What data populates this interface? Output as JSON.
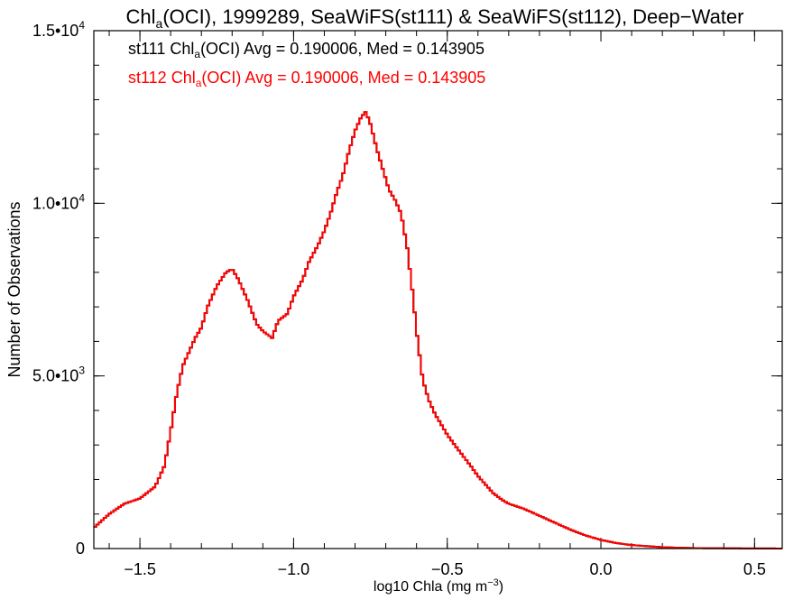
{
  "chart_data": {
    "type": "line",
    "title": {
      "base": "Chl",
      "sub": "a",
      "rest": "(OCI), 1999289, SeaWiFS(st111) & SeaWiFS(st112), Deep−Water"
    },
    "xlabel": {
      "base": "log10 Chla (mg m",
      "sup": "−3",
      "end": ")"
    },
    "ylabel": "Number of Observations",
    "xlim": [
      -1.65,
      0.59
    ],
    "ylim": [
      0,
      15000
    ],
    "x_ticks": [
      {
        "value": -1.5,
        "label": "−1.5"
      },
      {
        "value": -1.0,
        "label": "−1.0"
      },
      {
        "value": -0.5,
        "label": "−0.5"
      },
      {
        "value": 0.0,
        "label": "0.0"
      },
      {
        "value": 0.5,
        "label": "0.5"
      }
    ],
    "x_minor_step": 0.1,
    "y_ticks": [
      {
        "value": 0,
        "base": "0",
        "exp": ""
      },
      {
        "value": 5000,
        "base": "5.0•10",
        "exp": "3"
      },
      {
        "value": 10000,
        "base": "1.0•10",
        "exp": "4"
      },
      {
        "value": 15000,
        "base": "1.5•10",
        "exp": "4"
      }
    ],
    "y_minor_step": 1000,
    "annotations": [
      {
        "id": "st111",
        "color": "#000000",
        "prefix": "st111 Chl",
        "sub": "a",
        "rest": "(OCI) Avg = 0.190006, Med = 0.143905"
      },
      {
        "id": "st112",
        "color": "#ff0000",
        "prefix": "st112 Chl",
        "sub": "a",
        "rest": "(OCI) Avg = 0.190006, Med = 0.143905"
      }
    ],
    "series": [
      {
        "id": "st111",
        "color": "#000000"
      },
      {
        "id": "st112",
        "color": "#ff0000"
      }
    ],
    "x": [
      -1.65,
      -1.6,
      -1.55,
      -1.5,
      -1.45,
      -1.42,
      -1.4,
      -1.38,
      -1.36,
      -1.34,
      -1.32,
      -1.3,
      -1.28,
      -1.25,
      -1.22,
      -1.2,
      -1.18,
      -1.15,
      -1.12,
      -1.1,
      -1.07,
      -1.05,
      -1.02,
      -1.0,
      -0.97,
      -0.95,
      -0.92,
      -0.9,
      -0.88,
      -0.86,
      -0.84,
      -0.82,
      -0.8,
      -0.78,
      -0.765,
      -0.75,
      -0.73,
      -0.71,
      -0.69,
      -0.67,
      -0.65,
      -0.63,
      -0.61,
      -0.6,
      -0.59,
      -0.58,
      -0.56,
      -0.54,
      -0.52,
      -0.5,
      -0.48,
      -0.45,
      -0.42,
      -0.4,
      -0.37,
      -0.35,
      -0.32,
      -0.3,
      -0.25,
      -0.2,
      -0.15,
      -0.1,
      -0.05,
      0.0,
      0.05,
      0.1,
      0.15,
      0.2,
      0.25,
      0.3,
      0.35,
      0.4,
      0.45,
      0.5,
      0.55,
      0.59
    ],
    "values": [
      600,
      1000,
      1300,
      1450,
      1800,
      2400,
      3400,
      4500,
      5300,
      5700,
      6100,
      6400,
      7000,
      7600,
      8000,
      8100,
      7800,
      7200,
      6500,
      6300,
      6100,
      6600,
      6800,
      7300,
      7800,
      8300,
      8800,
      9200,
      9700,
      10300,
      10800,
      11500,
      12100,
      12500,
      12650,
      12300,
      11600,
      11000,
      10400,
      10100,
      9700,
      8700,
      7200,
      6300,
      5600,
      4900,
      4300,
      3900,
      3600,
      3300,
      3050,
      2700,
      2350,
      2100,
      1800,
      1600,
      1400,
      1300,
      1150,
      950,
      750,
      550,
      380,
      250,
      160,
      100,
      70,
      40,
      25,
      15,
      10,
      8,
      5,
      3,
      2,
      1
    ]
  }
}
